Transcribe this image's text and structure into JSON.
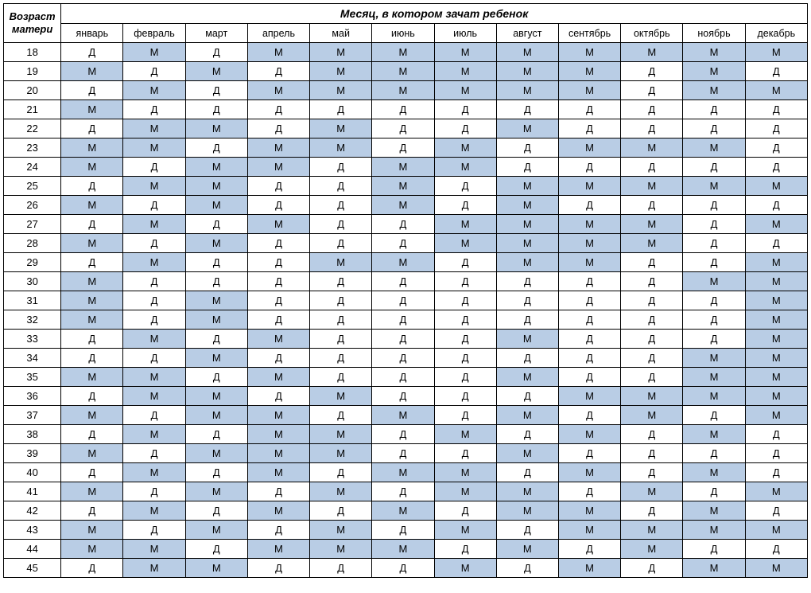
{
  "headers": {
    "age_label": "Возраст матери",
    "month_super_label": "Месяц, в котором зачат ребенок",
    "months": [
      "январь",
      "февраль",
      "март",
      "апрель",
      "май",
      "июнь",
      "июль",
      "август",
      "сентябрь",
      "октябрь",
      "ноябрь",
      "декабрь"
    ]
  },
  "ages": [
    18,
    19,
    20,
    21,
    22,
    23,
    24,
    25,
    26,
    27,
    28,
    29,
    30,
    31,
    32,
    33,
    34,
    35,
    36,
    37,
    38,
    39,
    40,
    41,
    42,
    43,
    44,
    45
  ],
  "rows": [
    [
      "Д",
      "М",
      "Д",
      "М",
      "М",
      "М",
      "М",
      "М",
      "М",
      "М",
      "М",
      "М"
    ],
    [
      "М",
      "Д",
      "М",
      "Д",
      "М",
      "М",
      "М",
      "М",
      "М",
      "Д",
      "М",
      "Д"
    ],
    [
      "Д",
      "М",
      "Д",
      "М",
      "М",
      "М",
      "М",
      "М",
      "М",
      "Д",
      "М",
      "М"
    ],
    [
      "М",
      "Д",
      "Д",
      "Д",
      "Д",
      "Д",
      "Д",
      "Д",
      "Д",
      "Д",
      "Д",
      "Д"
    ],
    [
      "Д",
      "М",
      "М",
      "Д",
      "М",
      "Д",
      "Д",
      "М",
      "Д",
      "Д",
      "Д",
      "Д"
    ],
    [
      "М",
      "М",
      "Д",
      "М",
      "М",
      "Д",
      "М",
      "Д",
      "М",
      "М",
      "М",
      "Д"
    ],
    [
      "М",
      "Д",
      "М",
      "М",
      "Д",
      "М",
      "М",
      "Д",
      "Д",
      "Д",
      "Д",
      "Д"
    ],
    [
      "Д",
      "М",
      "М",
      "Д",
      "Д",
      "М",
      "Д",
      "М",
      "М",
      "М",
      "М",
      "М"
    ],
    [
      "М",
      "Д",
      "М",
      "Д",
      "Д",
      "М",
      "Д",
      "М",
      "Д",
      "Д",
      "Д",
      "Д"
    ],
    [
      "Д",
      "М",
      "Д",
      "М",
      "Д",
      "Д",
      "М",
      "М",
      "М",
      "М",
      "Д",
      "М"
    ],
    [
      "М",
      "Д",
      "М",
      "Д",
      "Д",
      "Д",
      "М",
      "М",
      "М",
      "М",
      "Д",
      "Д"
    ],
    [
      "Д",
      "М",
      "Д",
      "Д",
      "М",
      "М",
      "Д",
      "М",
      "М",
      "Д",
      "Д",
      "М"
    ],
    [
      "М",
      "Д",
      "Д",
      "Д",
      "Д",
      "Д",
      "Д",
      "Д",
      "Д",
      "Д",
      "М",
      "М"
    ],
    [
      "М",
      "Д",
      "М",
      "Д",
      "Д",
      "Д",
      "Д",
      "Д",
      "Д",
      "Д",
      "Д",
      "М"
    ],
    [
      "М",
      "Д",
      "М",
      "Д",
      "Д",
      "Д",
      "Д",
      "Д",
      "Д",
      "Д",
      "Д",
      "М"
    ],
    [
      "Д",
      "М",
      "Д",
      "М",
      "Д",
      "Д",
      "Д",
      "М",
      "Д",
      "Д",
      "Д",
      "М"
    ],
    [
      "Д",
      "Д",
      "М",
      "Д",
      "Д",
      "Д",
      "Д",
      "Д",
      "Д",
      "Д",
      "М",
      "М"
    ],
    [
      "М",
      "М",
      "Д",
      "М",
      "Д",
      "Д",
      "Д",
      "М",
      "Д",
      "Д",
      "М",
      "М"
    ],
    [
      "Д",
      "М",
      "М",
      "Д",
      "М",
      "Д",
      "Д",
      "Д",
      "М",
      "М",
      "М",
      "М"
    ],
    [
      "М",
      "Д",
      "М",
      "М",
      "Д",
      "М",
      "Д",
      "М",
      "Д",
      "М",
      "Д",
      "М"
    ],
    [
      "Д",
      "М",
      "Д",
      "М",
      "М",
      "Д",
      "М",
      "Д",
      "М",
      "Д",
      "М",
      "Д"
    ],
    [
      "М",
      "Д",
      "М",
      "М",
      "М",
      "Д",
      "Д",
      "М",
      "Д",
      "Д",
      "Д",
      "Д"
    ],
    [
      "Д",
      "М",
      "Д",
      "М",
      "Д",
      "М",
      "М",
      "Д",
      "М",
      "Д",
      "М",
      "Д"
    ],
    [
      "М",
      "Д",
      "М",
      "Д",
      "М",
      "Д",
      "М",
      "М",
      "Д",
      "М",
      "Д",
      "М"
    ],
    [
      "Д",
      "М",
      "Д",
      "М",
      "Д",
      "М",
      "Д",
      "М",
      "М",
      "Д",
      "М",
      "Д"
    ],
    [
      "М",
      "Д",
      "М",
      "Д",
      "М",
      "Д",
      "М",
      "Д",
      "М",
      "М",
      "М",
      "М"
    ],
    [
      "М",
      "М",
      "Д",
      "М",
      "М",
      "М",
      "Д",
      "М",
      "Д",
      "М",
      "Д",
      "Д"
    ],
    [
      "Д",
      "М",
      "М",
      "Д",
      "Д",
      "Д",
      "М",
      "Д",
      "М",
      "Д",
      "М",
      "М"
    ]
  ],
  "colors": {
    "m_bg": "#b9cde5",
    "d_bg": "#ffffff",
    "border": "#000000",
    "text": "#000000"
  },
  "label_map": {
    "М": "М",
    "Д": "Д"
  }
}
